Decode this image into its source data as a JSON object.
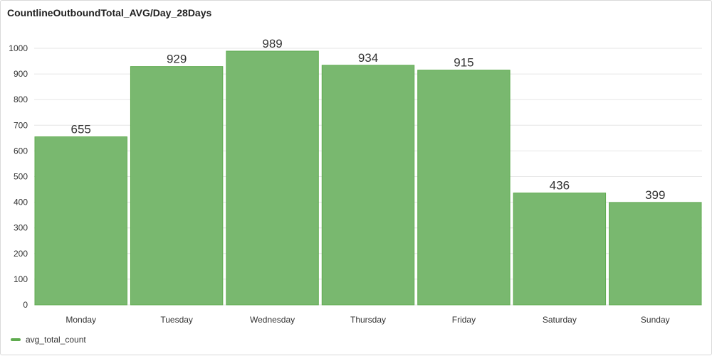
{
  "panel": {
    "title": "CountlineOutboundTotal_AVG/Day_28Days"
  },
  "legend": {
    "label": "avg_total_count"
  },
  "colors": {
    "bar_fill": "#79b86f",
    "bar_stroke": "#5fab4f",
    "grid": "#e6e6e6",
    "text": "#333333"
  },
  "chart_data": {
    "type": "bar",
    "title": "CountlineOutboundTotal_AVG/Day_28Days",
    "xlabel": "",
    "ylabel": "",
    "categories": [
      "Monday",
      "Tuesday",
      "Wednesday",
      "Thursday",
      "Friday",
      "Saturday",
      "Sunday"
    ],
    "series": [
      {
        "name": "avg_total_count",
        "values": [
          655,
          929,
          989,
          934,
          915,
          436,
          399
        ]
      }
    ],
    "ylim": [
      0,
      1000
    ],
    "yticks": [
      0,
      100,
      200,
      300,
      400,
      500,
      600,
      700,
      800,
      900,
      1000
    ],
    "ytick_labels": [
      "0",
      "100",
      "200",
      "300",
      "400",
      "500",
      "600",
      "700",
      "800",
      "900",
      "1000"
    ],
    "grid": true,
    "data_labels": true,
    "legend_position": "bottom-left"
  }
}
